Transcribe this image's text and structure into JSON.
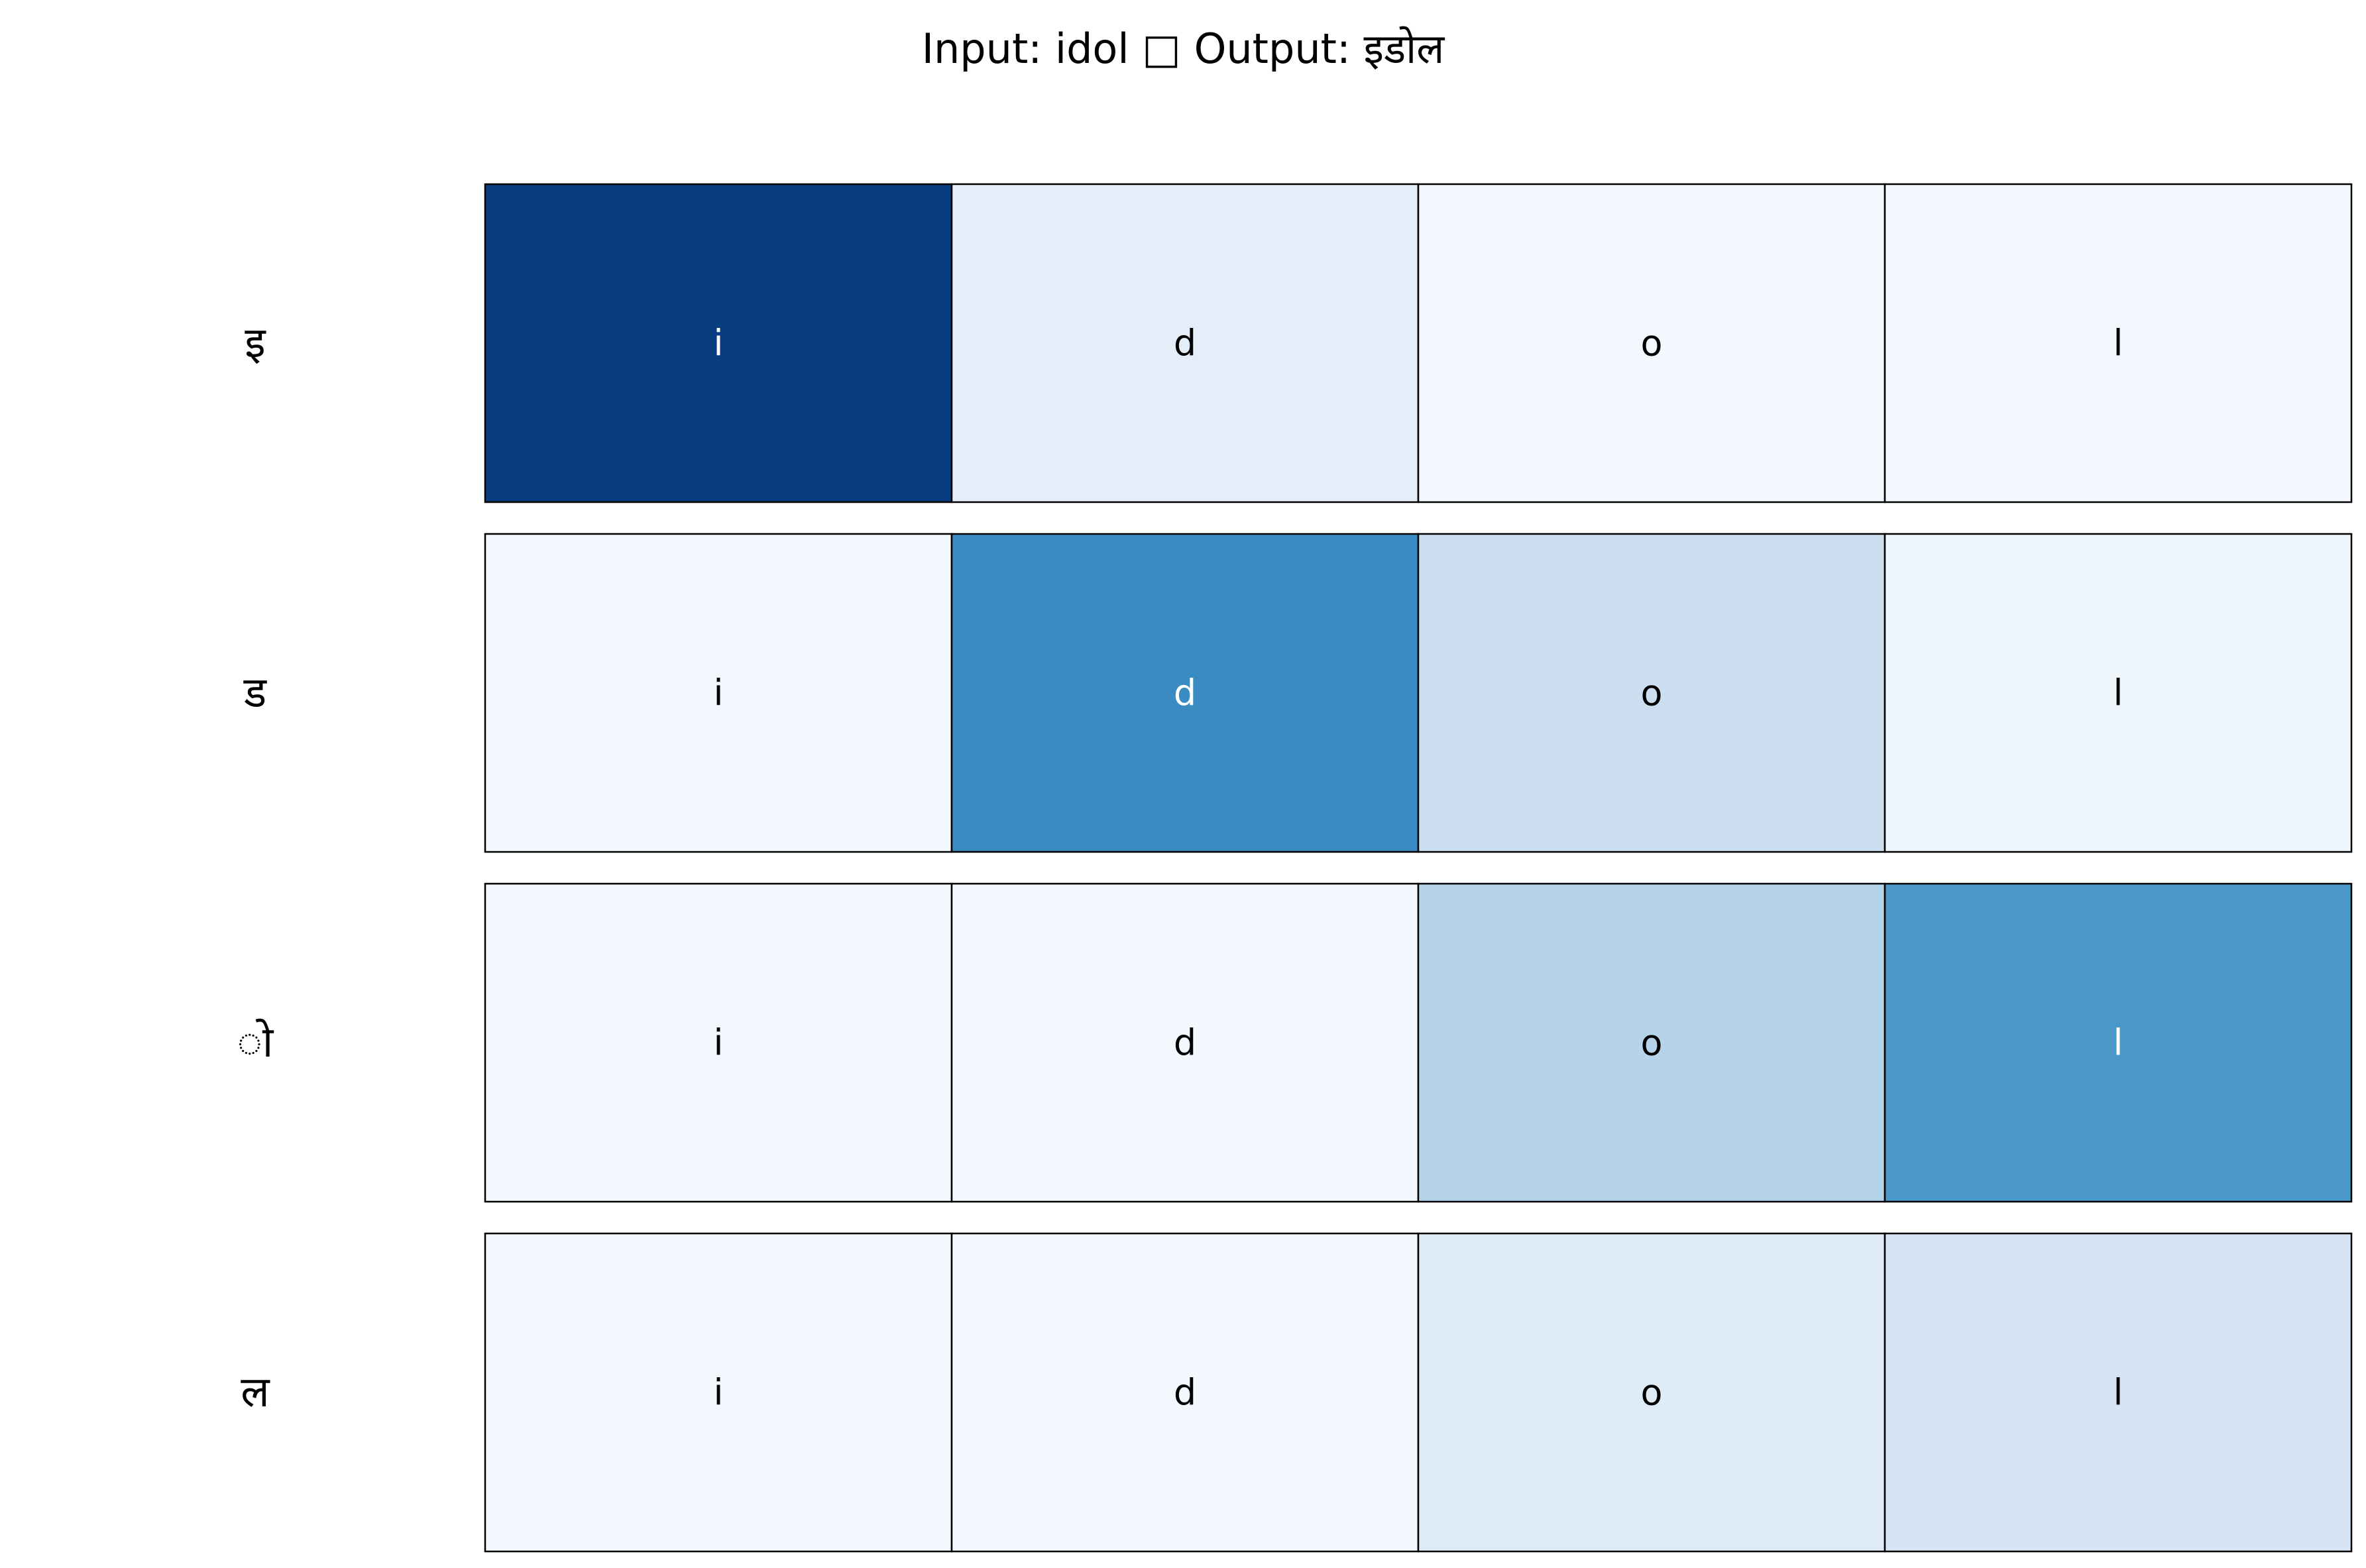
{
  "chart_data": {
    "type": "heatmap",
    "title": "Input: idol □ Output: इडोल",
    "columns": [
      "i",
      "d",
      "o",
      "l"
    ],
    "rows": [
      "इ",
      "ड",
      "ो",
      "ल"
    ],
    "values": [
      [
        0.95,
        0.1,
        0.02,
        0.02
      ],
      [
        0.02,
        0.65,
        0.22,
        0.04
      ],
      [
        0.02,
        0.02,
        0.3,
        0.6
      ],
      [
        0.02,
        0.02,
        0.12,
        0.17
      ]
    ],
    "colormap": "Blues",
    "grid": false
  }
}
